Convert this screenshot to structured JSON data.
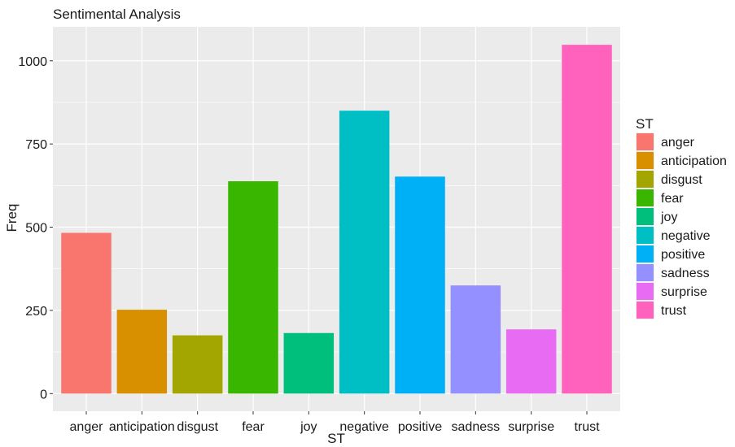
{
  "chart_data": {
    "type": "bar",
    "title": "Sentimental Analysis",
    "xlabel": "ST",
    "ylabel": "Freq",
    "categories": [
      "anger",
      "anticipation",
      "disgust",
      "fear",
      "joy",
      "negative",
      "positive",
      "sadness",
      "surprise",
      "trust"
    ],
    "values": [
      483,
      252,
      175,
      638,
      182,
      850,
      652,
      325,
      193,
      1048
    ],
    "colors": [
      "#F8766D",
      "#D89000",
      "#A3A500",
      "#39B600",
      "#00BF7D",
      "#00BFC4",
      "#00B0F6",
      "#9590FF",
      "#E76BF3",
      "#FF62BC"
    ],
    "ylim": [
      0,
      1100
    ],
    "yticks": [
      0,
      250,
      500,
      750,
      1000
    ],
    "ytick_labels": [
      "0",
      "250",
      "500",
      "750",
      "1000"
    ],
    "grid": true,
    "panel_background": "#EBEBEB",
    "grid_color": "#FFFFFF",
    "legend": {
      "title": "ST",
      "position": "right"
    }
  }
}
